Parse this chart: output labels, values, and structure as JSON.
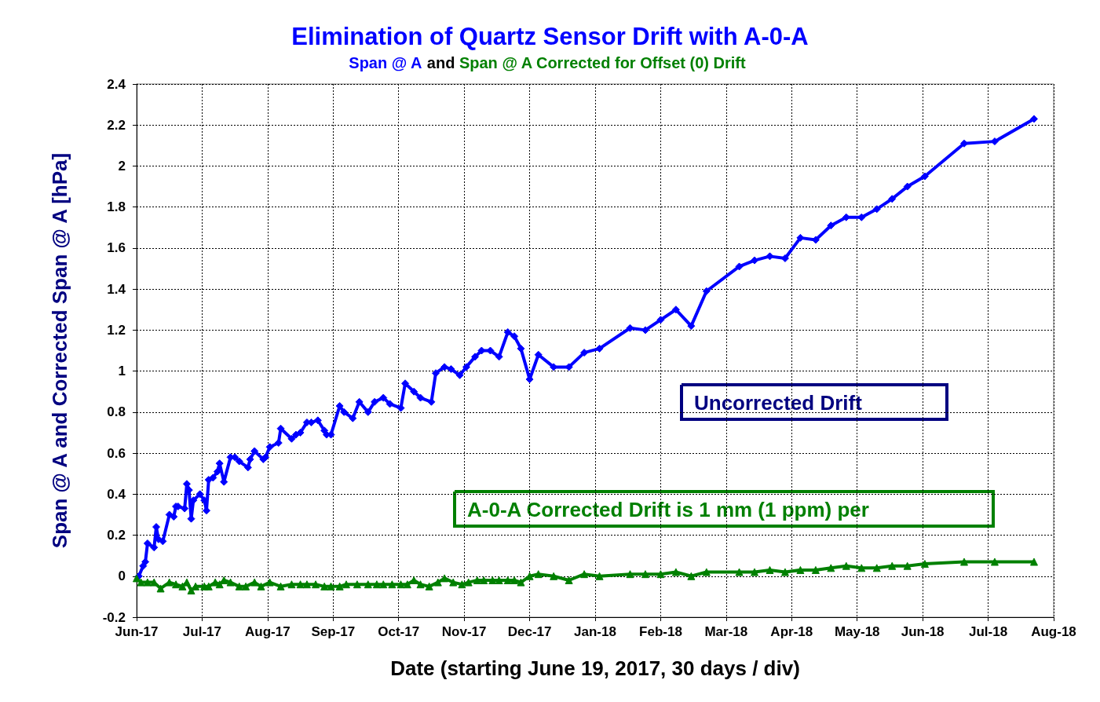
{
  "chart_data": {
    "type": "line",
    "title": "Elimination of Quartz Sensor Drift with A-0-A",
    "subtitle": "and",
    "xlabel": "Date (starting June 19, 2017, 30 days / div)",
    "ylabel": "Span @ A and Corrected Span @ A [hPa]",
    "annotations": [
      "Uncorrected Drift",
      "A-0-A Corrected Drift is 1 mm (1 ppm) per"
    ],
    "xlim": [
      "2017-06-19",
      "2018-08-13"
    ],
    "xticks": [
      {
        "value": "2017-06-19",
        "label": "Jun-17"
      },
      {
        "value": "2017-07-19",
        "label": "Jul-17"
      },
      {
        "value": "2017-08-18",
        "label": "Aug-17"
      },
      {
        "value": "2017-09-17",
        "label": "Sep-17"
      },
      {
        "value": "2017-10-17",
        "label": "Oct-17"
      },
      {
        "value": "2017-11-16",
        "label": "Nov-17"
      },
      {
        "value": "2017-12-16",
        "label": "Dec-17"
      },
      {
        "value": "2018-01-15",
        "label": "Jan-18"
      },
      {
        "value": "2018-02-14",
        "label": "Feb-18"
      },
      {
        "value": "2018-03-16",
        "label": "Mar-18"
      },
      {
        "value": "2018-04-15",
        "label": "Apr-18"
      },
      {
        "value": "2018-05-15",
        "label": "May-18"
      },
      {
        "value": "2018-06-14",
        "label": "Jun-18"
      },
      {
        "value": "2018-07-14",
        "label": "Jul-18"
      },
      {
        "value": "2018-08-13",
        "label": "Aug-18"
      }
    ],
    "ylim": [
      -0.2,
      2.4
    ],
    "yticks": [
      -0.2,
      0,
      0.2,
      0.4,
      0.6,
      0.8,
      1,
      1.2,
      1.4,
      1.6,
      1.8,
      2,
      2.2,
      2.4
    ],
    "grid": true,
    "line_style": "solid",
    "series": [
      {
        "name": "Span @ A",
        "color": "#0000ff",
        "marker": "diamond",
        "x": [
          "2017-06-20",
          "2017-06-22",
          "2017-06-23",
          "2017-06-24",
          "2017-06-27",
          "2017-06-28",
          "2017-06-29",
          "2017-07-01",
          "2017-07-04",
          "2017-07-06",
          "2017-07-07",
          "2017-07-08",
          "2017-07-11",
          "2017-07-12",
          "2017-07-13",
          "2017-07-14",
          "2017-07-15",
          "2017-07-18",
          "2017-07-20",
          "2017-07-21",
          "2017-07-22",
          "2017-07-24",
          "2017-07-26",
          "2017-07-27",
          "2017-07-29",
          "2017-08-01",
          "2017-08-03",
          "2017-08-05",
          "2017-08-09",
          "2017-08-10",
          "2017-08-12",
          "2017-08-16",
          "2017-08-17",
          "2017-08-19",
          "2017-08-23",
          "2017-08-24",
          "2017-08-29",
          "2017-08-31",
          "2017-09-02",
          "2017-09-05",
          "2017-09-07",
          "2017-09-10",
          "2017-09-13",
          "2017-09-14",
          "2017-09-16",
          "2017-09-20",
          "2017-09-22",
          "2017-09-26",
          "2017-09-29",
          "2017-10-03",
          "2017-10-06",
          "2017-10-10",
          "2017-10-13",
          "2017-10-18",
          "2017-10-20",
          "2017-10-24",
          "2017-10-27",
          "2017-11-01",
          "2017-11-03",
          "2017-11-07",
          "2017-11-10",
          "2017-11-14",
          "2017-11-17",
          "2017-11-21",
          "2017-11-24",
          "2017-11-28",
          "2017-12-02",
          "2017-12-06",
          "2017-12-09",
          "2017-12-12",
          "2017-12-16",
          "2017-12-20",
          "2017-12-27",
          "2018-01-03",
          "2018-01-10",
          "2018-01-17",
          "2018-01-31",
          "2018-02-07",
          "2018-02-14",
          "2018-02-21",
          "2018-02-28",
          "2018-03-07",
          "2018-03-22",
          "2018-03-29",
          "2018-04-05",
          "2018-04-12",
          "2018-04-19",
          "2018-04-26",
          "2018-05-03",
          "2018-05-10",
          "2018-05-17",
          "2018-05-24",
          "2018-05-31",
          "2018-06-07",
          "2018-06-15",
          "2018-07-03",
          "2018-07-17",
          "2018-08-04"
        ],
        "values": [
          0.0,
          0.05,
          0.07,
          0.16,
          0.14,
          0.24,
          0.18,
          0.17,
          0.3,
          0.29,
          0.34,
          0.34,
          0.33,
          0.45,
          0.42,
          0.28,
          0.37,
          0.4,
          0.37,
          0.32,
          0.47,
          0.48,
          0.51,
          0.55,
          0.46,
          0.58,
          0.58,
          0.56,
          0.53,
          0.57,
          0.61,
          0.57,
          0.58,
          0.63,
          0.65,
          0.72,
          0.67,
          0.69,
          0.7,
          0.75,
          0.75,
          0.76,
          0.71,
          0.69,
          0.69,
          0.83,
          0.8,
          0.77,
          0.85,
          0.8,
          0.85,
          0.87,
          0.84,
          0.82,
          0.94,
          0.9,
          0.87,
          0.85,
          0.99,
          1.02,
          1.01,
          0.98,
          1.02,
          1.07,
          1.1,
          1.1,
          1.07,
          1.19,
          1.17,
          1.11,
          0.96,
          1.08,
          1.02,
          1.02,
          1.09,
          1.11,
          1.21,
          1.2,
          1.25,
          1.3,
          1.22,
          1.39,
          1.51,
          1.54,
          1.56,
          1.55,
          1.65,
          1.64,
          1.71,
          1.75,
          1.75,
          1.79,
          1.84,
          1.9,
          1.95,
          2.11,
          2.12,
          2.23
        ]
      },
      {
        "name": "Span @ A Corrected for Offset (0) Drift",
        "color": "#008000",
        "marker": "triangle",
        "x": [
          "2017-06-19",
          "2017-06-21",
          "2017-06-24",
          "2017-06-27",
          "2017-06-30",
          "2017-07-04",
          "2017-07-07",
          "2017-07-10",
          "2017-07-12",
          "2017-07-14",
          "2017-07-16",
          "2017-07-20",
          "2017-07-22",
          "2017-07-25",
          "2017-07-27",
          "2017-07-29",
          "2017-08-01",
          "2017-08-05",
          "2017-08-08",
          "2017-08-12",
          "2017-08-15",
          "2017-08-19",
          "2017-08-24",
          "2017-08-29",
          "2017-09-02",
          "2017-09-05",
          "2017-09-09",
          "2017-09-13",
          "2017-09-16",
          "2017-09-20",
          "2017-09-23",
          "2017-09-28",
          "2017-10-03",
          "2017-10-07",
          "2017-10-10",
          "2017-10-14",
          "2017-10-18",
          "2017-10-21",
          "2017-10-24",
          "2017-10-27",
          "2017-10-31",
          "2017-11-04",
          "2017-11-07",
          "2017-11-11",
          "2017-11-15",
          "2017-11-18",
          "2017-11-22",
          "2017-11-25",
          "2017-11-29",
          "2017-12-02",
          "2017-12-06",
          "2017-12-09",
          "2017-12-12",
          "2017-12-16",
          "2017-12-20",
          "2017-12-27",
          "2018-01-03",
          "2018-01-10",
          "2018-01-17",
          "2018-01-31",
          "2018-02-07",
          "2018-02-14",
          "2018-02-21",
          "2018-02-28",
          "2018-03-07",
          "2018-03-22",
          "2018-03-29",
          "2018-04-05",
          "2018-04-12",
          "2018-04-19",
          "2018-04-26",
          "2018-05-03",
          "2018-05-10",
          "2018-05-17",
          "2018-05-24",
          "2018-05-31",
          "2018-06-07",
          "2018-06-15",
          "2018-07-03",
          "2018-07-17",
          "2018-08-04"
        ],
        "values": [
          -0.01,
          -0.03,
          -0.03,
          -0.03,
          -0.06,
          -0.03,
          -0.04,
          -0.05,
          -0.03,
          -0.07,
          -0.05,
          -0.05,
          -0.05,
          -0.03,
          -0.04,
          -0.02,
          -0.03,
          -0.05,
          -0.05,
          -0.03,
          -0.05,
          -0.03,
          -0.05,
          -0.04,
          -0.04,
          -0.04,
          -0.04,
          -0.05,
          -0.05,
          -0.05,
          -0.04,
          -0.04,
          -0.04,
          -0.04,
          -0.04,
          -0.04,
          -0.04,
          -0.04,
          -0.02,
          -0.04,
          -0.05,
          -0.03,
          -0.01,
          -0.03,
          -0.04,
          -0.03,
          -0.02,
          -0.02,
          -0.02,
          -0.02,
          -0.02,
          -0.02,
          -0.03,
          0.0,
          0.01,
          0.0,
          -0.02,
          0.01,
          0.0,
          0.01,
          0.01,
          0.01,
          0.02,
          0.0,
          0.02,
          0.02,
          0.02,
          0.03,
          0.02,
          0.03,
          0.03,
          0.04,
          0.05,
          0.04,
          0.04,
          0.05,
          0.05,
          0.06,
          0.07,
          0.07,
          0.07
        ]
      }
    ]
  }
}
